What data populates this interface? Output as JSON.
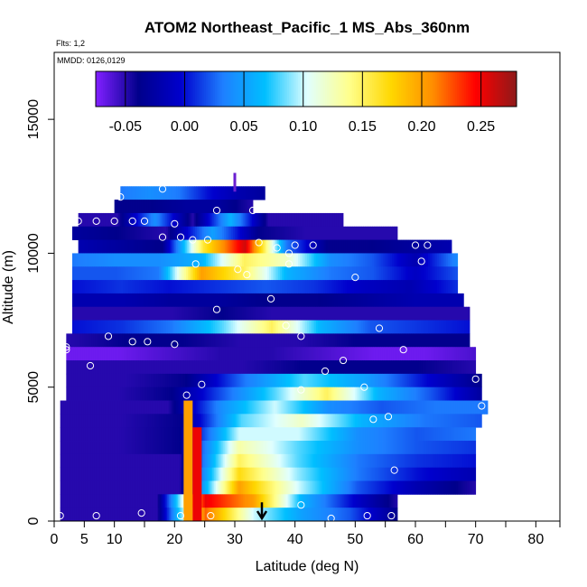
{
  "chart_data": {
    "type": "heatmap",
    "title": "ATOM2 Northeast_Pacific_1 MS_Abs_360nm",
    "flights_note": "Flts: 1,2",
    "dates_note": "MMDD: 0126,0129",
    "xlabel": "Latitude (deg N)",
    "ylabel": "Altitude (m)",
    "xlim": [
      0,
      84
    ],
    "ylim": [
      0,
      17500
    ],
    "x_ticks": [
      0,
      5,
      10,
      20,
      30,
      40,
      50,
      60,
      70,
      80
    ],
    "y_ticks": [
      0,
      5000,
      10000,
      15000
    ],
    "colorbar": {
      "range": [
        -0.075,
        0.28
      ],
      "ticks": [
        "-0.05",
        "0.00",
        "0.05",
        "0.10",
        "0.15",
        "0.20",
        "0.25"
      ],
      "tick_values": [
        -0.05,
        0.0,
        0.05,
        0.1,
        0.15,
        0.2,
        0.25
      ],
      "colors": [
        "#7f1fff",
        "#00008b",
        "#0000cd",
        "#1e7fff",
        "#00bfff",
        "#e0ffff",
        "#ffff8c",
        "#ffd700",
        "#ff8c00",
        "#ff0000",
        "#8b1a1a"
      ]
    },
    "layers": [
      {
        "alt": [
          12000,
          12500
        ],
        "lat": [
          11,
          35
        ],
        "values": [
          0.03,
          0.04,
          0.03,
          0.0,
          -0.02,
          -0.03
        ]
      },
      {
        "alt": [
          11500,
          12000
        ],
        "lat": [
          10,
          33
        ],
        "values": [
          -0.04,
          -0.04,
          -0.03,
          -0.03,
          -0.05
        ]
      },
      {
        "alt": [
          11000,
          11500
        ],
        "lat": [
          4,
          48
        ],
        "values": [
          -0.05,
          -0.05,
          0.04,
          -0.05,
          0.06,
          -0.05,
          -0.05,
          -0.05
        ]
      },
      {
        "alt": [
          10500,
          11000
        ],
        "lat": [
          3,
          57
        ],
        "values": [
          -0.03,
          -0.04,
          -0.05,
          0.05,
          -0.04,
          -0.05,
          -0.05,
          -0.05
        ]
      },
      {
        "alt": [
          10000,
          10500
        ],
        "lat": [
          4,
          66
        ],
        "values": [
          -0.02,
          -0.03,
          -0.04,
          0.16,
          0.26,
          0.03,
          -0.04,
          -0.04,
          -0.03,
          -0.02
        ]
      },
      {
        "alt": [
          9500,
          10000
        ],
        "lat": [
          3,
          67
        ],
        "values": [
          0.03,
          0.04,
          0.04,
          0.06,
          0.15,
          0.12,
          0.04,
          0.02,
          -0.02,
          0.04
        ]
      },
      {
        "alt": [
          9000,
          9500
        ],
        "lat": [
          3,
          67
        ],
        "values": [
          0.02,
          0.02,
          0.03,
          0.2,
          0.15,
          0.06,
          0.03,
          0.02,
          -0.01,
          0.02
        ]
      },
      {
        "alt": [
          8500,
          9000
        ],
        "lat": [
          3,
          67
        ],
        "values": [
          0.0,
          0.01,
          0.0,
          0.01,
          0.02,
          0.01,
          -0.01,
          -0.02,
          0.01
        ]
      },
      {
        "alt": [
          8000,
          8500
        ],
        "lat": [
          3,
          68
        ],
        "values": [
          -0.02,
          -0.02,
          -0.03,
          -0.03,
          -0.04,
          -0.04,
          -0.03,
          -0.02,
          -0.02
        ]
      },
      {
        "alt": [
          7500,
          8000
        ],
        "lat": [
          3,
          69
        ],
        "values": [
          -0.05,
          -0.05,
          -0.05,
          -0.04,
          -0.05,
          -0.05,
          -0.05,
          -0.05,
          -0.05
        ]
      },
      {
        "alt": [
          7000,
          7500
        ],
        "lat": [
          3,
          69
        ],
        "values": [
          0.0,
          0.01,
          0.03,
          0.08,
          0.15,
          0.06,
          0.02,
          0.01,
          0.0
        ]
      },
      {
        "alt": [
          6500,
          7000
        ],
        "lat": [
          2,
          69
        ],
        "values": [
          -0.05,
          -0.04,
          -0.04,
          -0.05,
          -0.05,
          -0.04,
          -0.04,
          -0.04
        ]
      },
      {
        "alt": [
          6000,
          6500
        ],
        "lat": [
          2,
          70
        ],
        "values": [
          -0.07,
          -0.07,
          -0.06,
          -0.05,
          -0.05,
          -0.06,
          -0.07,
          -0.07,
          -0.06
        ]
      },
      {
        "alt": [
          5500,
          6000
        ],
        "lat": [
          2,
          70
        ],
        "values": [
          -0.05,
          -0.05,
          -0.05,
          -0.05,
          -0.04,
          -0.04,
          -0.04,
          -0.05
        ]
      },
      {
        "alt": [
          5000,
          5500
        ],
        "lat": [
          2,
          71
        ],
        "values": [
          -0.05,
          -0.05,
          -0.04,
          0.03,
          0.08,
          0.05,
          0.0,
          -0.04
        ]
      },
      {
        "alt": [
          4500,
          5000
        ],
        "lat": [
          2,
          71
        ],
        "values": [
          -0.05,
          -0.05,
          -0.04,
          0.02,
          0.08,
          0.15,
          0.06,
          0.02,
          -0.03
        ]
      },
      {
        "alt": [
          4000,
          4500
        ],
        "lat": [
          1,
          72
        ],
        "values": [
          -0.05,
          -0.05,
          -0.05,
          0.04,
          0.1,
          0.04,
          0.02,
          0.03,
          0.03
        ]
      },
      {
        "alt": [
          3500,
          4000
        ],
        "lat": [
          1,
          71
        ],
        "values": [
          -0.05,
          -0.05,
          -0.04,
          0.08,
          0.12,
          0.06,
          0.03,
          0.02
        ]
      },
      {
        "alt": [
          3000,
          3500
        ],
        "lat": [
          1,
          70
        ],
        "values": [
          -0.05,
          -0.05,
          -0.04,
          0.1,
          0.1,
          0.04,
          0.02,
          0.03
        ]
      },
      {
        "alt": [
          2500,
          3000
        ],
        "lat": [
          1,
          70
        ],
        "values": [
          -0.05,
          -0.05,
          -0.04,
          0.13,
          0.08,
          0.04,
          0.02,
          0.01
        ]
      },
      {
        "alt": [
          2000,
          2500
        ],
        "lat": [
          1,
          70
        ],
        "values": [
          -0.05,
          -0.05,
          -0.05,
          0.15,
          0.08,
          0.03,
          0.01,
          0.0
        ]
      },
      {
        "alt": [
          1500,
          2000
        ],
        "lat": [
          1,
          70
        ],
        "values": [
          -0.05,
          -0.05,
          -0.05,
          0.17,
          0.09,
          0.03,
          0.0,
          -0.02
        ]
      },
      {
        "alt": [
          1000,
          1500
        ],
        "lat": [
          1,
          70
        ],
        "values": [
          -0.05,
          -0.05,
          -0.05,
          0.2,
          0.1,
          0.02,
          -0.02,
          -0.05
        ]
      },
      {
        "alt": [
          500,
          1000
        ],
        "lat": [
          1,
          57
        ],
        "values": [
          -0.05,
          -0.05,
          -0.05,
          0.25,
          0.2,
          0.06,
          0.0,
          -0.05
        ]
      },
      {
        "alt": [
          0,
          500
        ],
        "lat": [
          1,
          57
        ],
        "values": [
          -0.05,
          -0.05,
          -0.05,
          0.22,
          0.1,
          0.05,
          0.02,
          -0.04
        ]
      }
    ],
    "vertical_strips": [
      {
        "lat": [
          21.5,
          23
        ],
        "alt": [
          0,
          4500
        ],
        "value": 0.2
      },
      {
        "lat": [
          23,
          24.5
        ],
        "alt": [
          0,
          3500
        ],
        "value": 0.25
      }
    ],
    "annotation_bar": {
      "lat": 30,
      "alt": [
        12300,
        13000
      ]
    },
    "arrow": {
      "lat": 34.5,
      "alt_from": 700,
      "alt_to": 0
    },
    "sample_points": [
      [
        11,
        12100
      ],
      [
        18,
        12400
      ],
      [
        27,
        11600
      ],
      [
        33,
        11600
      ],
      [
        4,
        11200
      ],
      [
        7,
        11200
      ],
      [
        10,
        11200
      ],
      [
        13,
        11200
      ],
      [
        15,
        11200
      ],
      [
        20,
        11100
      ],
      [
        18,
        10600
      ],
      [
        21,
        10600
      ],
      [
        23,
        10500
      ],
      [
        25.5,
        10500
      ],
      [
        34,
        10400
      ],
      [
        37,
        10200
      ],
      [
        39,
        10000
      ],
      [
        40,
        10300
      ],
      [
        43,
        10300
      ],
      [
        60,
        10300
      ],
      [
        62,
        10300
      ],
      [
        66,
        10800
      ],
      [
        23.5,
        9600
      ],
      [
        30.5,
        9400
      ],
      [
        32,
        9200
      ],
      [
        39,
        9600
      ],
      [
        50,
        9100
      ],
      [
        61,
        9700
      ],
      [
        36,
        8300
      ],
      [
        27,
        7900
      ],
      [
        38.5,
        7300
      ],
      [
        54,
        7200
      ],
      [
        9,
        6900
      ],
      [
        13,
        6700
      ],
      [
        15.5,
        6700
      ],
      [
        20,
        6600
      ],
      [
        41,
        6900
      ],
      [
        2,
        6500
      ],
      [
        2,
        6400
      ],
      [
        58,
        6400
      ],
      [
        6,
        5800
      ],
      [
        48,
        6000
      ],
      [
        45,
        5600
      ],
      [
        70,
        5300
      ],
      [
        22,
        4700
      ],
      [
        24.5,
        5100
      ],
      [
        41,
        4900
      ],
      [
        51.5,
        5000
      ],
      [
        71,
        4300
      ],
      [
        53,
        3800
      ],
      [
        55.5,
        3900
      ],
      [
        56.5,
        1900
      ],
      [
        14.5,
        300
      ],
      [
        21,
        200
      ],
      [
        26,
        200
      ],
      [
        41,
        600
      ],
      [
        46,
        100
      ],
      [
        52,
        200
      ],
      [
        56,
        200
      ],
      [
        1,
        200
      ],
      [
        7,
        200
      ],
      [
        70,
        700
      ]
    ]
  }
}
